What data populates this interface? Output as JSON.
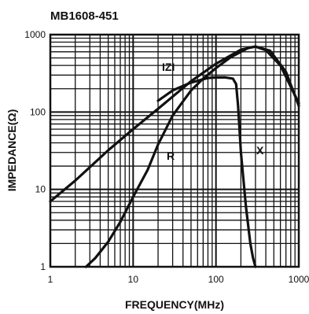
{
  "chart_data": {
    "type": "line",
    "title": "MB1608-451",
    "xlabel": "FREQUENCY(MHz)",
    "ylabel": "IMPEDANCE(Ω)",
    "xscale": "log",
    "yscale": "log",
    "xlim": [
      1,
      1000
    ],
    "ylim": [
      1,
      1000
    ],
    "grid": true,
    "legend": "none",
    "x_tick_labels": [
      "1",
      "10",
      "100",
      "1000"
    ],
    "y_tick_labels": [
      "1",
      "10",
      "100",
      "1000"
    ],
    "series": [
      {
        "name": "IZI",
        "color": "#111111",
        "x": [
          1,
          2,
          5,
          10,
          20,
          50,
          100,
          200,
          300,
          450,
          700,
          1000
        ],
        "y": [
          7,
          13,
          32,
          60,
          110,
          250,
          420,
          640,
          700,
          620,
          330,
          120
        ]
      },
      {
        "name": "R",
        "color": "#111111",
        "x": [
          2.7,
          3.5,
          5,
          7,
          10,
          15,
          20,
          30,
          50,
          70,
          100,
          150,
          250,
          300,
          400,
          600,
          1000
        ],
        "y": [
          1.0,
          1.3,
          2.1,
          3.8,
          8,
          18,
          38,
          90,
          190,
          270,
          370,
          510,
          680,
          700,
          630,
          400,
          130
        ]
      },
      {
        "name": "X",
        "color": "#111111",
        "x": [
          20,
          30,
          50,
          80,
          100,
          130,
          160,
          175,
          185,
          200,
          230,
          260,
          280,
          300
        ],
        "y": [
          140,
          190,
          240,
          275,
          280,
          280,
          270,
          230,
          120,
          30,
          6,
          2,
          1.3,
          1
        ]
      }
    ]
  }
}
